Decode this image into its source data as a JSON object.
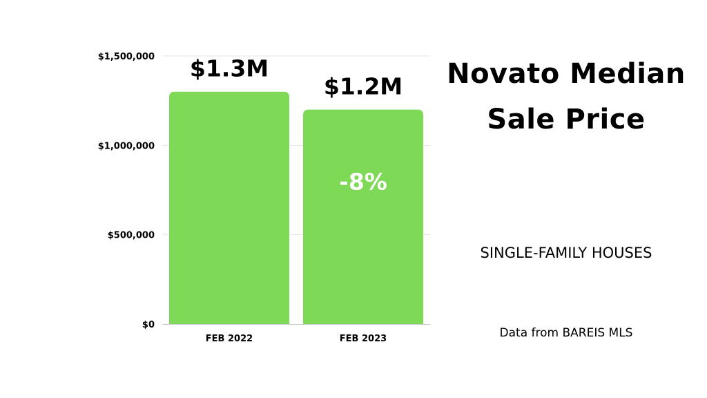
{
  "title": "Novato Median Sale Price",
  "subtitle": "SINGLE-FAMILY HOUSES",
  "source": "Data from BAREIS MLS",
  "chart_data": {
    "type": "bar",
    "categories": [
      "FEB 2022",
      "FEB 2023"
    ],
    "values": [
      1300000,
      1200000
    ],
    "value_labels": [
      "$1.3M",
      "$1.2M"
    ],
    "annotation": "-8%",
    "ylim": [
      0,
      1500000
    ],
    "yticks": [
      0,
      500000,
      1000000,
      1500000
    ],
    "ytick_labels": [
      "$0",
      "$500,000",
      "$1,000,000",
      "$1,500,000"
    ],
    "grid": true,
    "legend": "none",
    "bar_color": "#7ed957",
    "grid_color": "#e6e6e6"
  }
}
